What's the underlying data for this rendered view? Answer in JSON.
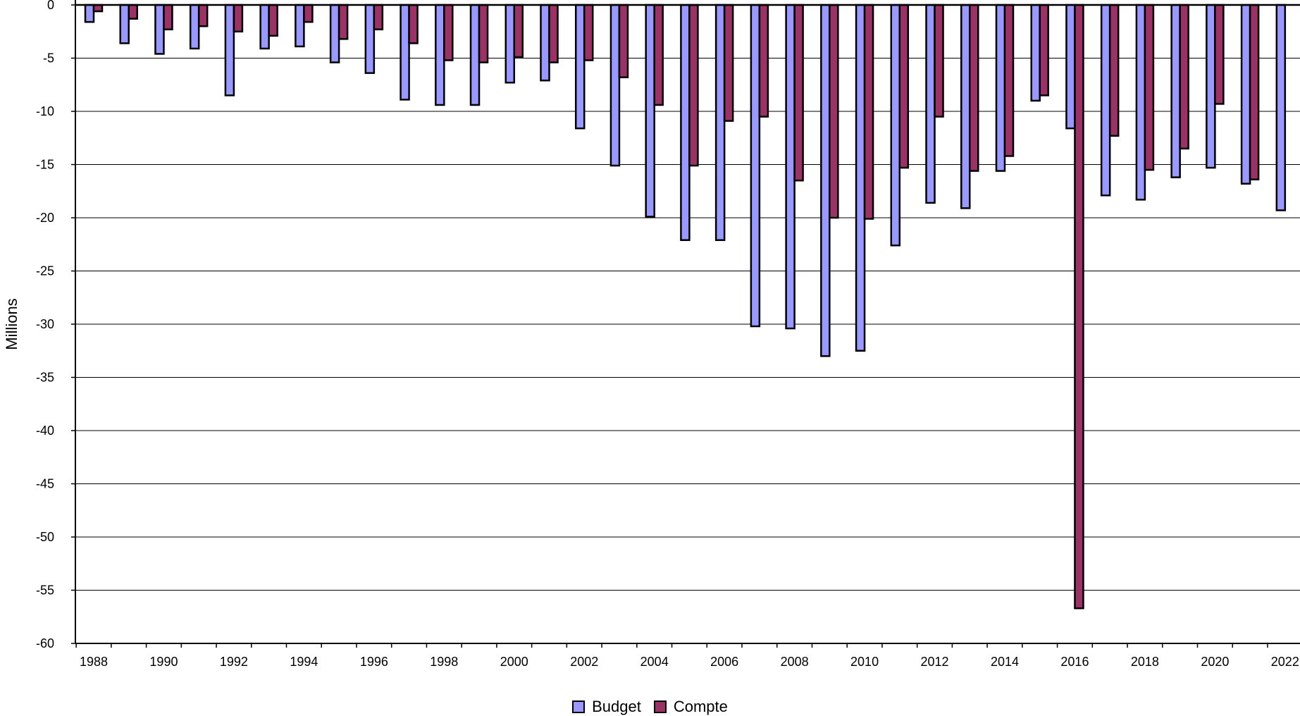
{
  "chart_data": {
    "type": "bar",
    "ylabel": "Millions",
    "xlabel": "",
    "ylim": [
      -60,
      0
    ],
    "yticks": [
      0,
      -5,
      -10,
      -15,
      -20,
      -25,
      -30,
      -35,
      -40,
      -45,
      -50,
      -55,
      -60
    ],
    "ytick_labels": [
      "0",
      "-5",
      "-10",
      "-15",
      "-20",
      "-25",
      "-30",
      "-35",
      "-40",
      "-45",
      "-50",
      "-55",
      "-60"
    ],
    "categories": [
      "1988",
      "1989",
      "1990",
      "1991",
      "1992",
      "1993",
      "1994",
      "1995",
      "1996",
      "1997",
      "1998",
      "1999",
      "2000",
      "2001",
      "2002",
      "2003",
      "2004",
      "2005",
      "2006",
      "2007",
      "2008",
      "2009",
      "2010",
      "2011",
      "2012",
      "2013",
      "2014",
      "2015",
      "2016",
      "2017",
      "2018",
      "2019",
      "2020",
      "2021",
      "2022"
    ],
    "xtick_labels": [
      "1988",
      "1990",
      "1992",
      "1994",
      "1996",
      "1998",
      "2000",
      "2002",
      "2004",
      "2006",
      "2008",
      "2010",
      "2012",
      "2014",
      "2016",
      "2018",
      "2020",
      "2022"
    ],
    "grid": true,
    "legend_position": "bottom-center",
    "series": [
      {
        "name": "Budget",
        "color": "#9999ff",
        "values": [
          -1.6,
          -3.6,
          -4.6,
          -4.1,
          -8.5,
          -4.1,
          -3.9,
          -5.4,
          -6.4,
          -8.9,
          -9.4,
          -9.4,
          -7.3,
          -7.1,
          -11.6,
          -15.1,
          -19.9,
          -22.1,
          -22.1,
          -30.2,
          -30.4,
          -33.0,
          -32.5,
          -22.6,
          -18.6,
          -19.1,
          -15.6,
          -9.0,
          -11.6,
          -17.9,
          -18.3,
          -16.2,
          -15.3,
          -16.8,
          -19.3
        ]
      },
      {
        "name": "Compte",
        "color": "#993366",
        "values": [
          -0.6,
          -1.3,
          -2.3,
          -2.0,
          -2.5,
          -2.9,
          -1.6,
          -3.2,
          -2.3,
          -3.6,
          -5.2,
          -5.4,
          -4.9,
          -5.4,
          -5.2,
          -6.8,
          -9.4,
          -15.1,
          -10.9,
          -10.5,
          -16.5,
          -20.0,
          -20.1,
          -15.3,
          -10.5,
          -15.6,
          -14.2,
          -8.5,
          -56.7,
          -12.3,
          -15.5,
          -13.5,
          -9.3,
          -16.4,
          null
        ]
      }
    ]
  }
}
